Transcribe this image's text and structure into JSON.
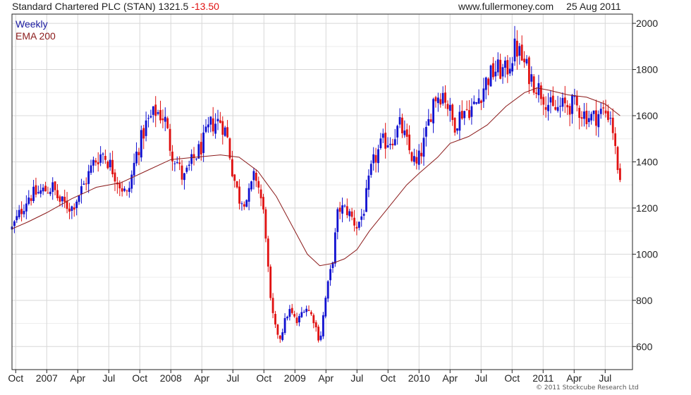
{
  "header": {
    "title": "Standard Chartered PLC (STAN) 1321.5",
    "change": "-13.50",
    "site": "www.fullermoney.com",
    "date": "25 Aug 2011"
  },
  "copyright": "© 2011 Stockcube Research Ltd",
  "colors": {
    "up": "#1010d0",
    "down": "#e01010",
    "ema": "#8b1a1a",
    "grid": "#d8d8d8",
    "axis": "#222222"
  },
  "chart_data": {
    "type": "candlestick",
    "legend": [
      {
        "name": "Weekly",
        "color": "#1a1aa0"
      },
      {
        "name": "EMA 200",
        "color": "#8b1a1a"
      }
    ],
    "y_axis_side": "right",
    "ylim": [
      500,
      2040
    ],
    "y_ticks": [
      600,
      800,
      1000,
      1200,
      1400,
      1600,
      1800,
      2000
    ],
    "x_range": [
      2006.72,
      2011.72
    ],
    "x_ticks": [
      {
        "label": "Oct",
        "t": 2006.75
      },
      {
        "label": "2007",
        "t": 2007.0
      },
      {
        "label": "Apr",
        "t": 2007.25
      },
      {
        "label": "Jul",
        "t": 2007.5
      },
      {
        "label": "Oct",
        "t": 2007.75
      },
      {
        "label": "2008",
        "t": 2008.0
      },
      {
        "label": "Apr",
        "t": 2008.25
      },
      {
        "label": "Jul",
        "t": 2008.5
      },
      {
        "label": "Oct",
        "t": 2008.75
      },
      {
        "label": "2009",
        "t": 2009.0
      },
      {
        "label": "Apr",
        "t": 2009.25
      },
      {
        "label": "Jul",
        "t": 2009.5
      },
      {
        "label": "Oct",
        "t": 2009.75
      },
      {
        "label": "2010",
        "t": 2010.0
      },
      {
        "label": "Apr",
        "t": 2010.25
      },
      {
        "label": "Jul",
        "t": 2010.5
      },
      {
        "label": "Oct",
        "t": 2010.75
      },
      {
        "label": "2011",
        "t": 2011.0
      },
      {
        "label": "Apr",
        "t": 2011.25
      },
      {
        "label": "Jul",
        "t": 2011.5
      }
    ],
    "price_path": [
      [
        2006.72,
        1110
      ],
      [
        2006.85,
        1250
      ],
      [
        2006.95,
        1270
      ],
      [
        2007.05,
        1290
      ],
      [
        2007.1,
        1230
      ],
      [
        2007.2,
        1200
      ],
      [
        2007.3,
        1300
      ],
      [
        2007.38,
        1400
      ],
      [
        2007.45,
        1440
      ],
      [
        2007.52,
        1380
      ],
      [
        2007.58,
        1310
      ],
      [
        2007.65,
        1250
      ],
      [
        2007.72,
        1430
      ],
      [
        2007.8,
        1560
      ],
      [
        2007.88,
        1620
      ],
      [
        2007.95,
        1590
      ],
      [
        2008.0,
        1450
      ],
      [
        2008.05,
        1400
      ],
      [
        2008.1,
        1320
      ],
      [
        2008.17,
        1400
      ],
      [
        2008.25,
        1470
      ],
      [
        2008.32,
        1560
      ],
      [
        2008.4,
        1580
      ],
      [
        2008.45,
        1520
      ],
      [
        2008.5,
        1350
      ],
      [
        2008.55,
        1240
      ],
      [
        2008.62,
        1240
      ],
      [
        2008.68,
        1350
      ],
      [
        2008.72,
        1260
      ],
      [
        2008.76,
        1130
      ],
      [
        2008.8,
        800
      ],
      [
        2008.84,
        680
      ],
      [
        2008.88,
        640
      ],
      [
        2008.95,
        760
      ],
      [
        2009.02,
        700
      ],
      [
        2009.08,
        780
      ],
      [
        2009.15,
        720
      ],
      [
        2009.2,
        620
      ],
      [
        2009.25,
        820
      ],
      [
        2009.3,
        960
      ],
      [
        2009.35,
        1200
      ],
      [
        2009.42,
        1190
      ],
      [
        2009.5,
        1120
      ],
      [
        2009.55,
        1180
      ],
      [
        2009.62,
        1380
      ],
      [
        2009.7,
        1480
      ],
      [
        2009.78,
        1500
      ],
      [
        2009.85,
        1560
      ],
      [
        2009.92,
        1450
      ],
      [
        2009.98,
        1380
      ],
      [
        2010.05,
        1500
      ],
      [
        2010.12,
        1680
      ],
      [
        2010.2,
        1700
      ],
      [
        2010.28,
        1560
      ],
      [
        2010.35,
        1620
      ],
      [
        2010.45,
        1640
      ],
      [
        2010.55,
        1760
      ],
      [
        2010.62,
        1800
      ],
      [
        2010.7,
        1790
      ],
      [
        2010.78,
        1900
      ],
      [
        2010.85,
        1820
      ],
      [
        2010.92,
        1750
      ],
      [
        2011.0,
        1690
      ],
      [
        2011.08,
        1620
      ],
      [
        2011.15,
        1640
      ],
      [
        2011.25,
        1650
      ],
      [
        2011.32,
        1610
      ],
      [
        2011.4,
        1590
      ],
      [
        2011.48,
        1620
      ],
      [
        2011.55,
        1600
      ],
      [
        2011.58,
        1450
      ],
      [
        2011.62,
        1321.5
      ]
    ],
    "ema_200": [
      [
        2006.72,
        1110
      ],
      [
        2006.85,
        1140
      ],
      [
        2007.0,
        1180
      ],
      [
        2007.2,
        1240
      ],
      [
        2007.4,
        1290
      ],
      [
        2007.6,
        1310
      ],
      [
        2007.8,
        1360
      ],
      [
        2008.0,
        1410
      ],
      [
        2008.2,
        1420
      ],
      [
        2008.4,
        1430
      ],
      [
        2008.55,
        1420
      ],
      [
        2008.7,
        1360
      ],
      [
        2008.85,
        1250
      ],
      [
        2009.0,
        1100
      ],
      [
        2009.1,
        1000
      ],
      [
        2009.2,
        950
      ],
      [
        2009.3,
        960
      ],
      [
        2009.4,
        980
      ],
      [
        2009.5,
        1020
      ],
      [
        2009.6,
        1100
      ],
      [
        2009.75,
        1200
      ],
      [
        2009.9,
        1300
      ],
      [
        2010.0,
        1350
      ],
      [
        2010.15,
        1420
      ],
      [
        2010.25,
        1480
      ],
      [
        2010.4,
        1510
      ],
      [
        2010.55,
        1560
      ],
      [
        2010.7,
        1640
      ],
      [
        2010.85,
        1700
      ],
      [
        2010.95,
        1720
      ],
      [
        2011.05,
        1710
      ],
      [
        2011.2,
        1690
      ],
      [
        2011.35,
        1680
      ],
      [
        2011.5,
        1650
      ],
      [
        2011.62,
        1600
      ]
    ],
    "weeks": 255,
    "last_close": 1321.5
  }
}
